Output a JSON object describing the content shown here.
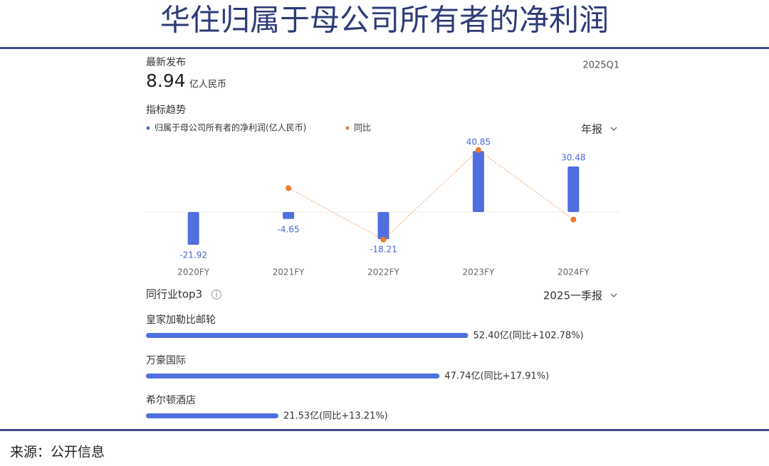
{
  "header": {
    "title": "华住归属于母公司所有者的净利润"
  },
  "latest": {
    "label": "最新发布",
    "value": "8.94",
    "unit": "亿人民币",
    "period": "2025Q1"
  },
  "chart_data": [
    {
      "type": "bar",
      "title": "指标趋势",
      "period_selector": "年报",
      "categories": [
        "2020FY",
        "2021FY",
        "2022FY",
        "2023FY",
        "2024FY"
      ],
      "series": [
        {
          "name": "归属于母公司所有者的净利润(亿人民币)",
          "color": "#4f6fe0",
          "values": [
            -21.92,
            -4.65,
            -18.21,
            40.85,
            30.48
          ]
        },
        {
          "name": "同比",
          "color": "#f07a2a",
          "axis": "y2",
          "values": [
            null,
            32,
            -37,
            83,
            -10
          ]
        }
      ],
      "ylim": [
        -30,
        50
      ],
      "y2lim": [
        -60,
        100
      ]
    },
    {
      "type": "hbar",
      "title": "同行业top3",
      "period_selector": "2025一季报",
      "color": "#4f6fe0",
      "categories": [
        "皇家加勒比邮轮",
        "万豪国际",
        "希尔顿酒店"
      ],
      "values": [
        52.4,
        47.74,
        21.53
      ],
      "value_labels": [
        "52.40亿(同比+102.78%)",
        "47.74亿(同比+17.91%)",
        "21.53亿(同比+13.21%)"
      ],
      "xlim": [
        0,
        77
      ]
    }
  ],
  "footer": {
    "source": "来源：公开信息"
  }
}
